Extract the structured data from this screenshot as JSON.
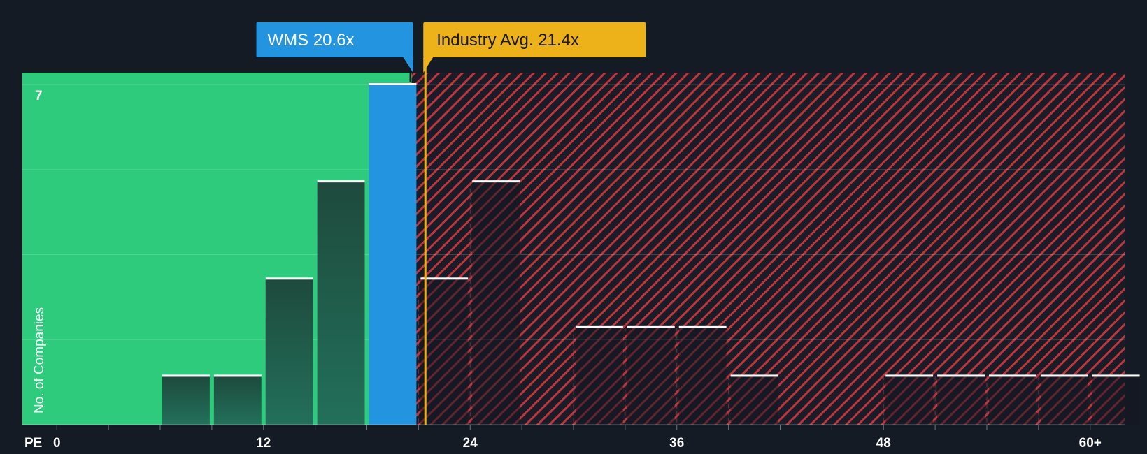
{
  "chart_data": {
    "type": "bar",
    "title": "",
    "xlabel": "PE",
    "ylabel": "No. of Companies",
    "x_ticks": [
      "0",
      "12",
      "24",
      "36",
      "48",
      "60+"
    ],
    "x_tick_values": [
      0,
      12,
      24,
      36,
      48,
      60
    ],
    "x_range": [
      -2,
      62
    ],
    "ylim": [
      0,
      7
    ],
    "y_tick_label": "7",
    "bin_width": 3,
    "bins": [
      {
        "start": 6,
        "value": 1
      },
      {
        "start": 9,
        "value": 1
      },
      {
        "start": 12,
        "value": 3
      },
      {
        "start": 15,
        "value": 5
      },
      {
        "start": 18,
        "value": 7,
        "highlight": true
      },
      {
        "start": 21,
        "value": 3
      },
      {
        "start": 24,
        "value": 5
      },
      {
        "start": 30,
        "value": 2
      },
      {
        "start": 33,
        "value": 2
      },
      {
        "start": 36,
        "value": 2
      },
      {
        "start": 39,
        "value": 1
      },
      {
        "start": 48,
        "value": 1
      },
      {
        "start": 51,
        "value": 1
      },
      {
        "start": 54,
        "value": 1
      },
      {
        "start": 57,
        "value": 1
      },
      {
        "start": 60,
        "value": 1
      }
    ],
    "company": {
      "label": "WMS 20.6x",
      "pe": 20.6
    },
    "industry_avg": {
      "label": "Industry Avg. 21.4x",
      "pe": 21.4
    },
    "grid": true,
    "colors": {
      "background": "#151b24",
      "good_zone": "#2ecb7d",
      "bad_zone_stripe": "#c0353d",
      "bar_dark": "#1e4a3d",
      "bar_highlight": "#2394e0",
      "bar_bad": "#1f2230",
      "company_label_bg": "#2394e0",
      "industry_label_bg": "#edb11a",
      "industry_line": "#edb11a",
      "bar_cap": "#ffffff",
      "axis_text": "#ffffff"
    }
  }
}
